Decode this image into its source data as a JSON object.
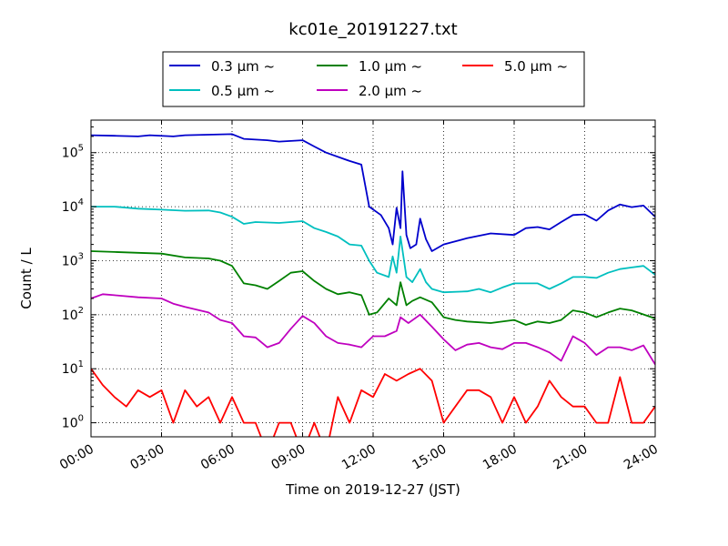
{
  "chart_data": {
    "type": "line",
    "title": "kc01e_20191227.txt",
    "xlabel": "Time on 2019-12-27 (JST)",
    "ylabel": "Count / L",
    "xlim": [
      "2019-12-27 00:00",
      "2019-12-28 00:00"
    ],
    "ylim": [
      0.55,
      400000
    ],
    "yscale": "log",
    "grid": true,
    "legend_position": "top-center",
    "x_ticks": [
      "00:00",
      "03:00",
      "06:00",
      "09:00",
      "12:00",
      "15:00",
      "18:00",
      "21:00",
      "24:00"
    ],
    "y_ticks": [
      {
        "value": 1,
        "base": "10",
        "exp": "0"
      },
      {
        "value": 10,
        "base": "10",
        "exp": "1"
      },
      {
        "value": 100,
        "base": "10",
        "exp": "2"
      },
      {
        "value": 1000,
        "base": "10",
        "exp": "3"
      },
      {
        "value": 10000,
        "base": "10",
        "exp": "4"
      },
      {
        "value": 100000,
        "base": "10",
        "exp": "5"
      }
    ],
    "series": [
      {
        "name": "0.3 μm ~",
        "color": "#0000cc",
        "points": [
          [
            "00:00",
            210000
          ],
          [
            "01:00",
            205000
          ],
          [
            "02:00",
            200000
          ],
          [
            "02:30",
            210000
          ],
          [
            "03:30",
            200000
          ],
          [
            "04:00",
            210000
          ],
          [
            "05:00",
            215000
          ],
          [
            "06:00",
            220000
          ],
          [
            "06:30",
            180000
          ],
          [
            "07:30",
            170000
          ],
          [
            "08:00",
            160000
          ],
          [
            "09:00",
            170000
          ],
          [
            "09:30",
            130000
          ],
          [
            "10:00",
            100000
          ],
          [
            "11:00",
            70000
          ],
          [
            "11:30",
            60000
          ],
          [
            "11:50",
            10000
          ],
          [
            "12:20",
            7000
          ],
          [
            "12:40",
            4000
          ],
          [
            "12:50",
            2000
          ],
          [
            "13:00",
            9500
          ],
          [
            "13:10",
            4000
          ],
          [
            "13:15",
            45000
          ],
          [
            "13:25",
            3000
          ],
          [
            "13:35",
            1700
          ],
          [
            "13:50",
            2000
          ],
          [
            "14:00",
            6000
          ],
          [
            "14:15",
            2500
          ],
          [
            "14:30",
            1500
          ],
          [
            "15:00",
            2000
          ],
          [
            "16:00",
            2600
          ],
          [
            "17:00",
            3200
          ],
          [
            "18:00",
            3000
          ],
          [
            "18:30",
            4000
          ],
          [
            "19:00",
            4200
          ],
          [
            "19:30",
            3800
          ],
          [
            "20:00",
            5200
          ],
          [
            "20:30",
            7000
          ],
          [
            "21:00",
            7200
          ],
          [
            "21:30",
            5500
          ],
          [
            "22:00",
            8500
          ],
          [
            "22:30",
            11000
          ],
          [
            "23:00",
            9800
          ],
          [
            "23:30",
            10500
          ],
          [
            "24:00",
            6500
          ]
        ]
      },
      {
        "name": "0.5 μm ~",
        "color": "#00bfbf",
        "points": [
          [
            "00:00",
            10000
          ],
          [
            "01:00",
            10000
          ],
          [
            "02:00",
            9200
          ],
          [
            "03:00",
            8800
          ],
          [
            "04:00",
            8400
          ],
          [
            "05:00",
            8500
          ],
          [
            "05:30",
            7800
          ],
          [
            "06:00",
            6500
          ],
          [
            "06:30",
            4800
          ],
          [
            "07:00",
            5200
          ],
          [
            "08:00",
            5000
          ],
          [
            "09:00",
            5400
          ],
          [
            "09:30",
            4000
          ],
          [
            "10:00",
            3400
          ],
          [
            "10:30",
            2800
          ],
          [
            "11:00",
            2000
          ],
          [
            "11:30",
            1900
          ],
          [
            "11:50",
            1000
          ],
          [
            "12:10",
            600
          ],
          [
            "12:40",
            500
          ],
          [
            "12:50",
            1200
          ],
          [
            "13:00",
            600
          ],
          [
            "13:10",
            2800
          ],
          [
            "13:25",
            500
          ],
          [
            "13:40",
            400
          ],
          [
            "14:00",
            700
          ],
          [
            "14:15",
            400
          ],
          [
            "14:30",
            300
          ],
          [
            "15:00",
            260
          ],
          [
            "16:00",
            270
          ],
          [
            "16:30",
            300
          ],
          [
            "17:00",
            260
          ],
          [
            "17:30",
            320
          ],
          [
            "18:00",
            380
          ],
          [
            "19:00",
            380
          ],
          [
            "19:30",
            300
          ],
          [
            "20:00",
            380
          ],
          [
            "20:30",
            500
          ],
          [
            "21:00",
            500
          ],
          [
            "21:30",
            480
          ],
          [
            "22:00",
            600
          ],
          [
            "22:30",
            700
          ],
          [
            "23:00",
            750
          ],
          [
            "23:30",
            800
          ],
          [
            "24:00",
            550
          ]
        ]
      },
      {
        "name": "1.0 μm ~",
        "color": "#008000",
        "points": [
          [
            "00:00",
            1500
          ],
          [
            "01:00",
            1450
          ],
          [
            "02:00",
            1400
          ],
          [
            "03:00",
            1350
          ],
          [
            "04:00",
            1150
          ],
          [
            "05:00",
            1100
          ],
          [
            "05:30",
            1000
          ],
          [
            "06:00",
            800
          ],
          [
            "06:30",
            380
          ],
          [
            "07:00",
            350
          ],
          [
            "07:30",
            300
          ],
          [
            "08:00",
            420
          ],
          [
            "08:30",
            600
          ],
          [
            "09:00",
            640
          ],
          [
            "09:30",
            420
          ],
          [
            "10:00",
            300
          ],
          [
            "10:30",
            240
          ],
          [
            "11:00",
            260
          ],
          [
            "11:30",
            230
          ],
          [
            "11:50",
            100
          ],
          [
            "12:10",
            110
          ],
          [
            "12:40",
            200
          ],
          [
            "13:00",
            150
          ],
          [
            "13:10",
            400
          ],
          [
            "13:25",
            150
          ],
          [
            "13:40",
            180
          ],
          [
            "14:00",
            210
          ],
          [
            "14:30",
            170
          ],
          [
            "15:00",
            90
          ],
          [
            "15:30",
            80
          ],
          [
            "16:00",
            75
          ],
          [
            "17:00",
            70
          ],
          [
            "18:00",
            80
          ],
          [
            "18:30",
            65
          ],
          [
            "19:00",
            75
          ],
          [
            "19:30",
            70
          ],
          [
            "20:00",
            80
          ],
          [
            "20:30",
            120
          ],
          [
            "21:00",
            110
          ],
          [
            "21:30",
            90
          ],
          [
            "22:00",
            110
          ],
          [
            "22:30",
            130
          ],
          [
            "23:00",
            120
          ],
          [
            "24:00",
            85
          ]
        ]
      },
      {
        "name": "2.0 μm ~",
        "color": "#bf00bf",
        "points": [
          [
            "00:00",
            200
          ],
          [
            "00:30",
            240
          ],
          [
            "01:00",
            230
          ],
          [
            "02:00",
            210
          ],
          [
            "03:00",
            200
          ],
          [
            "03:30",
            160
          ],
          [
            "04:00",
            140
          ],
          [
            "05:00",
            110
          ],
          [
            "05:30",
            80
          ],
          [
            "06:00",
            70
          ],
          [
            "06:30",
            40
          ],
          [
            "07:00",
            38
          ],
          [
            "07:30",
            25
          ],
          [
            "08:00",
            30
          ],
          [
            "08:30",
            55
          ],
          [
            "09:00",
            95
          ],
          [
            "09:30",
            70
          ],
          [
            "10:00",
            40
          ],
          [
            "10:30",
            30
          ],
          [
            "11:00",
            28
          ],
          [
            "11:30",
            25
          ],
          [
            "12:00",
            40
          ],
          [
            "12:30",
            40
          ],
          [
            "13:00",
            50
          ],
          [
            "13:10",
            90
          ],
          [
            "13:30",
            70
          ],
          [
            "14:00",
            100
          ],
          [
            "14:30",
            60
          ],
          [
            "15:00",
            35
          ],
          [
            "15:30",
            22
          ],
          [
            "16:00",
            28
          ],
          [
            "16:30",
            30
          ],
          [
            "17:00",
            25
          ],
          [
            "17:30",
            23
          ],
          [
            "18:00",
            30
          ],
          [
            "18:30",
            30
          ],
          [
            "19:00",
            25
          ],
          [
            "19:30",
            20
          ],
          [
            "20:00",
            14
          ],
          [
            "20:30",
            40
          ],
          [
            "21:00",
            30
          ],
          [
            "21:30",
            18
          ],
          [
            "22:00",
            25
          ],
          [
            "22:30",
            25
          ],
          [
            "23:00",
            22
          ],
          [
            "23:30",
            27
          ],
          [
            "24:00",
            12
          ]
        ]
      },
      {
        "name": "5.0 μm ~",
        "color": "#ff0000",
        "points": [
          [
            "00:00",
            10
          ],
          [
            "00:30",
            5
          ],
          [
            "01:00",
            3
          ],
          [
            "01:30",
            2
          ],
          [
            "02:00",
            4
          ],
          [
            "02:30",
            3
          ],
          [
            "03:00",
            4
          ],
          [
            "03:30",
            1
          ],
          [
            "04:00",
            4
          ],
          [
            "04:30",
            2
          ],
          [
            "05:00",
            3
          ],
          [
            "05:30",
            1
          ],
          [
            "06:00",
            3
          ],
          [
            "06:30",
            1
          ],
          [
            "07:00",
            1
          ],
          [
            "07:30",
            0
          ],
          [
            "08:00",
            1
          ],
          [
            "08:30",
            1
          ],
          [
            "09:00",
            0
          ],
          [
            "09:30",
            1
          ],
          [
            "10:00",
            0
          ],
          [
            "10:30",
            3
          ],
          [
            "11:00",
            1
          ],
          [
            "11:30",
            4
          ],
          [
            "12:00",
            3
          ],
          [
            "12:30",
            8
          ],
          [
            "13:00",
            6
          ],
          [
            "13:30",
            8
          ],
          [
            "14:00",
            10
          ],
          [
            "14:30",
            6
          ],
          [
            "15:00",
            1
          ],
          [
            "15:30",
            2
          ],
          [
            "16:00",
            4
          ],
          [
            "16:30",
            4
          ],
          [
            "17:00",
            3
          ],
          [
            "17:30",
            1
          ],
          [
            "18:00",
            3
          ],
          [
            "18:30",
            1
          ],
          [
            "19:00",
            2
          ],
          [
            "19:30",
            6
          ],
          [
            "20:00",
            3
          ],
          [
            "20:30",
            2
          ],
          [
            "21:00",
            2
          ],
          [
            "21:30",
            1
          ],
          [
            "22:00",
            1
          ],
          [
            "22:30",
            7
          ],
          [
            "23:00",
            1
          ],
          [
            "23:30",
            1
          ],
          [
            "24:00",
            2
          ]
        ]
      }
    ]
  }
}
